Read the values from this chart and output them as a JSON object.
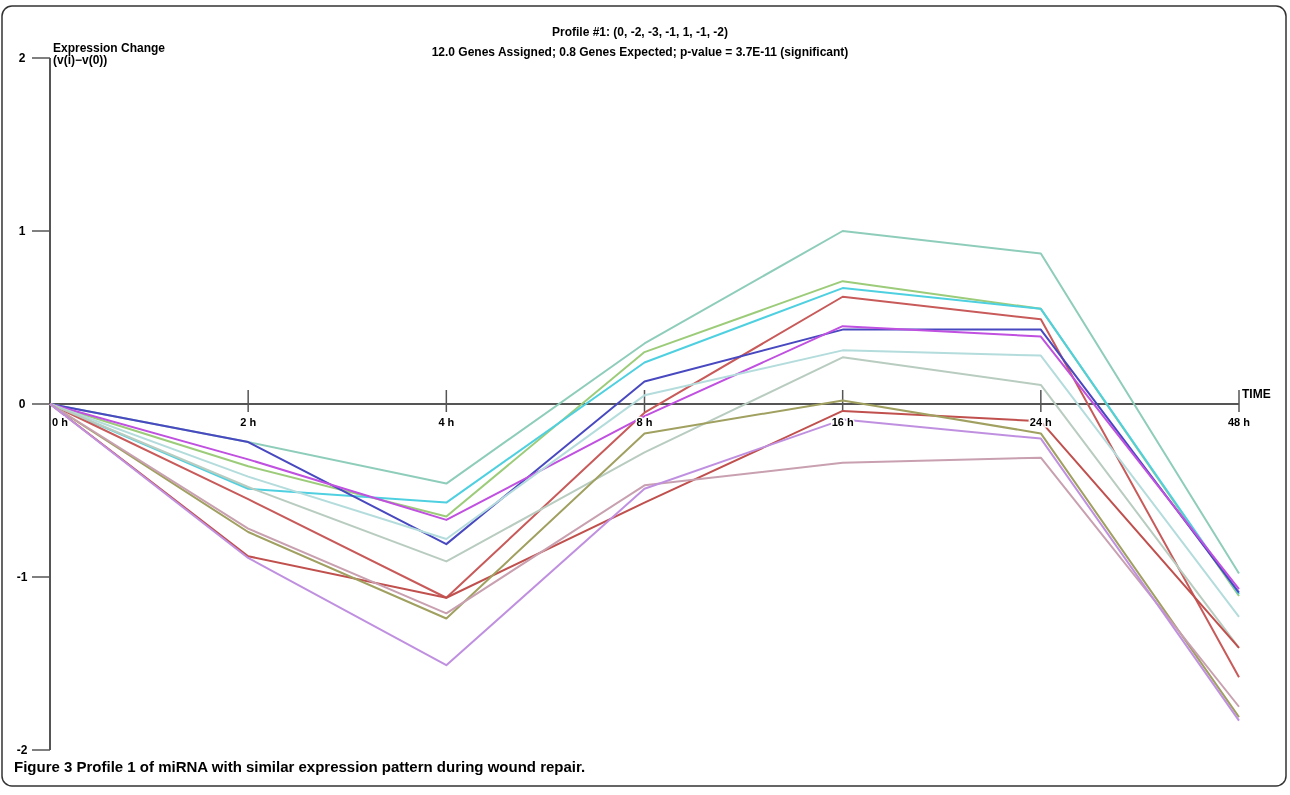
{
  "chart_data": {
    "type": "line",
    "title": "Profile #1: (0, -2, -3, -1, 1, -1, -2)",
    "subtitle": "12.0 Genes Assigned; 0.8 Genes Expected; p-value = 3.7E-11 (significant)",
    "xlabel": "TIME",
    "ylabel": "Expression Change\n(v(i)−v(0))",
    "categories": [
      "0 h",
      "2 h",
      "4 h",
      "8 h",
      "16 h",
      "24 h",
      "48 h"
    ],
    "ylim": [
      -2,
      2
    ],
    "yticks": [
      -2,
      -1,
      0,
      1,
      2
    ],
    "grid": false,
    "marker": "none",
    "line_style": "solid",
    "annotations": [
      "Figure 3 Profile 1 of miRNA with similar expression pattern during wound repair."
    ],
    "series": [
      {
        "color": "#8fcdbb",
        "values": [
          0,
          -0.22,
          -0.46,
          0.35,
          1.0,
          0.87,
          -0.98
        ]
      },
      {
        "color": "#9ccc7a",
        "values": [
          0,
          -0.36,
          -0.65,
          0.3,
          0.71,
          0.55,
          -1.11
        ]
      },
      {
        "color": "#4fd0e0",
        "values": [
          0,
          -0.49,
          -0.57,
          0.24,
          0.67,
          0.55,
          -1.1
        ]
      },
      {
        "color": "#c85a5a",
        "values": [
          0,
          -0.55,
          -1.12,
          -0.05,
          0.62,
          0.49,
          -1.58
        ]
      },
      {
        "color": "#4848c0",
        "values": [
          0,
          -0.22,
          -0.81,
          0.13,
          0.43,
          0.43,
          -1.09
        ]
      },
      {
        "color": "#c050e0",
        "values": [
          0,
          -0.32,
          -0.67,
          -0.07,
          0.45,
          0.39,
          -1.07
        ]
      },
      {
        "color": "#b4dcdc",
        "values": [
          0,
          -0.42,
          -0.78,
          0.05,
          0.31,
          0.28,
          -1.23
        ]
      },
      {
        "color": "#b8ccc0",
        "values": [
          0,
          -0.48,
          -0.91,
          -0.28,
          0.27,
          0.11,
          -1.41
        ]
      },
      {
        "color": "#c0504d",
        "values": [
          0,
          -0.88,
          -1.12,
          -0.57,
          -0.04,
          -0.1,
          -1.41
        ]
      },
      {
        "color": "#a0a060",
        "values": [
          0,
          -0.74,
          -1.24,
          -0.17,
          0.02,
          -0.17,
          -1.81
        ]
      },
      {
        "color": "#c8a0b0",
        "values": [
          0,
          -0.72,
          -1.21,
          -0.47,
          -0.34,
          -0.31,
          -1.75
        ]
      },
      {
        "color": "#c090e0",
        "values": [
          0,
          -0.89,
          -1.51,
          -0.49,
          -0.09,
          -0.2,
          -1.83
        ]
      }
    ]
  }
}
